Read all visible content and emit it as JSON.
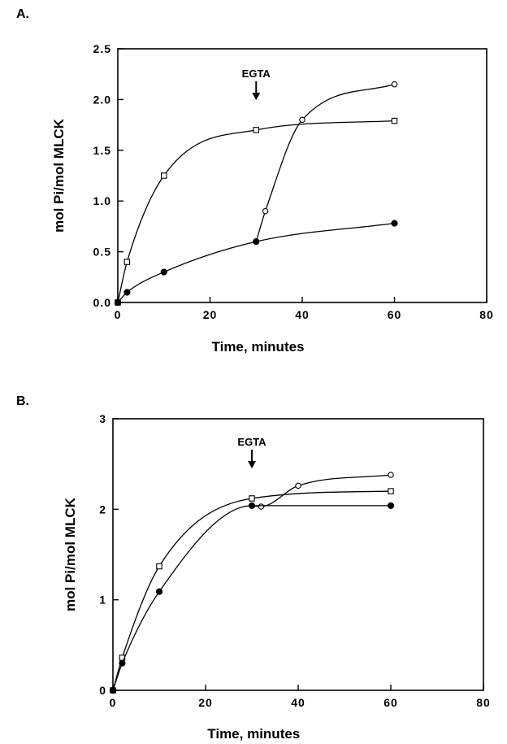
{
  "chart_data": [
    {
      "panel": "A.",
      "type": "line",
      "xlabel": "Time, minutes",
      "ylabel": "mol Pi/mol MLCK",
      "xlim": [
        0,
        80
      ],
      "ylim": [
        0,
        2.5
      ],
      "xticks": [
        0,
        20,
        40,
        60,
        80
      ],
      "yticks": [
        0.0,
        0.5,
        1.0,
        1.5,
        2.0,
        2.5
      ],
      "ytick_labels": [
        "0.0",
        "0.5",
        "1.0",
        "1.5",
        "2.0",
        "2.5"
      ],
      "annotation": {
        "text": "EGTA",
        "x": 30
      },
      "series": [
        {
          "marker": "open-square",
          "x": [
            0,
            2,
            10,
            30,
            60
          ],
          "y": [
            0.0,
            0.4,
            1.25,
            1.7,
            1.79
          ]
        },
        {
          "marker": "open-circle",
          "x": [
            30,
            32,
            40,
            60
          ],
          "y": [
            0.6,
            0.9,
            1.8,
            2.15
          ]
        },
        {
          "marker": "filled-circle",
          "x": [
            0,
            2,
            10,
            30,
            60
          ],
          "y": [
            0.0,
            0.1,
            0.3,
            0.6,
            0.78
          ]
        }
      ]
    },
    {
      "panel": "B.",
      "type": "line",
      "xlabel": "Time, minutes",
      "ylabel": "mol Pi/mol MLCK",
      "xlim": [
        0,
        80
      ],
      "ylim": [
        0,
        3
      ],
      "xticks": [
        0,
        20,
        40,
        60,
        80
      ],
      "yticks": [
        0,
        1,
        2,
        3
      ],
      "ytick_labels": [
        "0",
        "1",
        "2",
        "3"
      ],
      "annotation": {
        "text": "EGTA",
        "x": 30
      },
      "series": [
        {
          "marker": "open-square",
          "x": [
            0,
            2,
            10,
            30,
            60
          ],
          "y": [
            0.0,
            0.36,
            1.37,
            2.12,
            2.2
          ]
        },
        {
          "marker": "open-circle",
          "x": [
            30,
            32,
            40,
            60
          ],
          "y": [
            2.04,
            2.03,
            2.26,
            2.38
          ]
        },
        {
          "marker": "filled-circle",
          "x": [
            0,
            2,
            10,
            30,
            60
          ],
          "y": [
            0.0,
            0.3,
            1.09,
            2.04,
            2.04
          ]
        }
      ]
    }
  ]
}
